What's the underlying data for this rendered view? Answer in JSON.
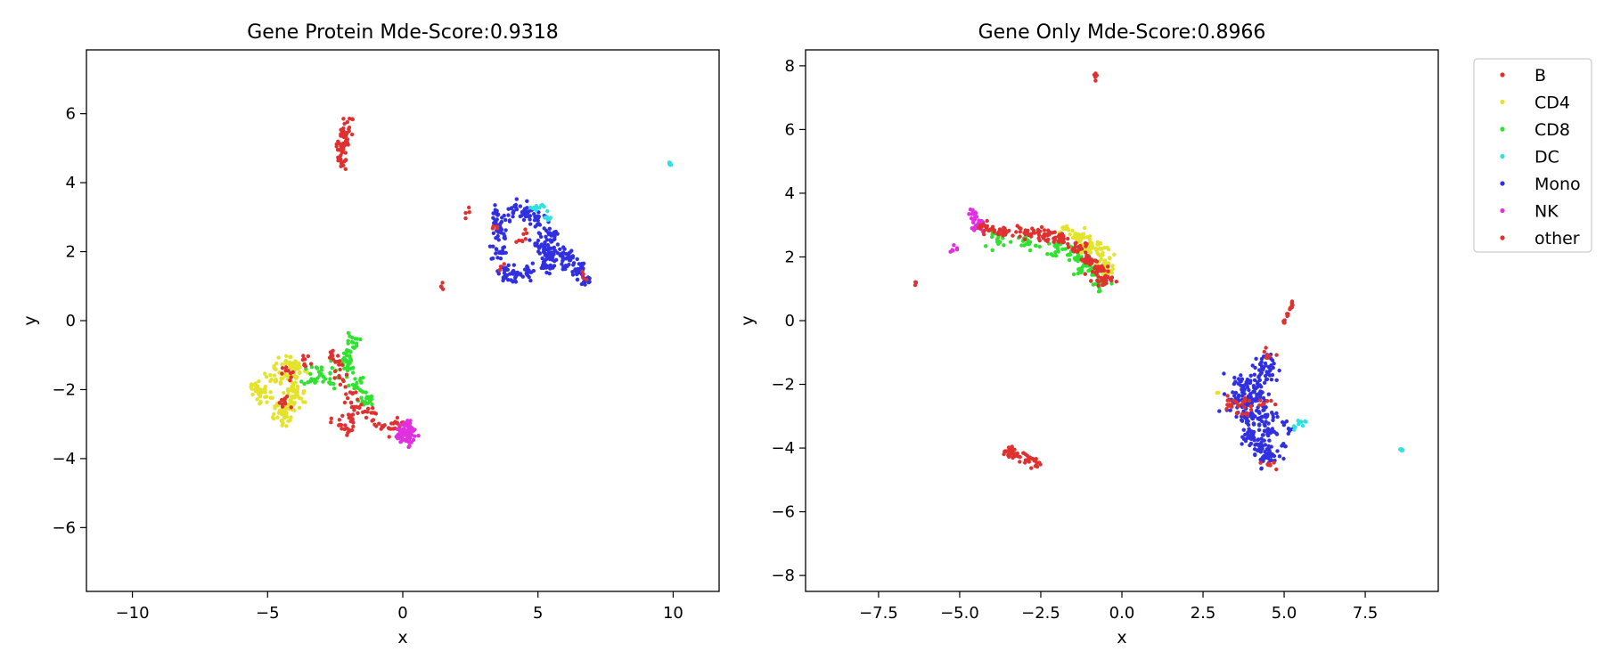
{
  "chart_data": [
    {
      "type": "scatter",
      "title": "Gene Protein Mde-Score:0.9318",
      "xlabel": "x",
      "ylabel": "y",
      "xlim": [
        -11.7,
        11.7
      ],
      "ylim": [
        -7.85,
        7.85
      ],
      "xticks": [
        -10,
        -5,
        0,
        5,
        10
      ],
      "xtick_labels": [
        "−10",
        "−5",
        "0",
        "5",
        "10"
      ],
      "yticks": [
        -6,
        -4,
        -2,
        0,
        2,
        4,
        6
      ],
      "ytick_labels": [
        "−6",
        "−4",
        "−2",
        "0",
        "2",
        "4",
        "6"
      ],
      "grid": false,
      "clusters": [
        {
          "series": "other",
          "points": [
            [
              -2.15,
              5.3
            ],
            [
              -2.25,
              5.0
            ],
            [
              -2.05,
              5.55
            ],
            [
              -2.2,
              4.8
            ]
          ],
          "spread": [
            0.12,
            0.2
          ],
          "n": 60
        },
        {
          "series": "DC",
          "points": [
            [
              9.85,
              4.52
            ]
          ],
          "spread": [
            0.05,
            0.04
          ],
          "n": 6
        },
        {
          "series": "Mono",
          "points": [
            [
              3.5,
              3.0
            ],
            [
              3.6,
              2.5
            ],
            [
              3.55,
              2.0
            ],
            [
              3.7,
              1.4
            ],
            [
              4.2,
              1.3
            ],
            [
              4.6,
              1.45
            ],
            [
              4.1,
              3.2
            ],
            [
              4.6,
              3.15
            ],
            [
              5.0,
              2.9
            ],
            [
              5.1,
              2.3
            ],
            [
              5.35,
              2.0
            ],
            [
              5.6,
              1.9
            ],
            [
              5.9,
              1.8
            ],
            [
              6.2,
              1.75
            ],
            [
              6.5,
              1.5
            ],
            [
              6.75,
              1.2
            ],
            [
              5.3,
              1.6
            ],
            [
              5.5,
              2.4
            ]
          ],
          "spread": [
            0.14,
            0.14
          ],
          "n": 340
        },
        {
          "series": "DC",
          "points": [
            [
              4.8,
              3.25
            ],
            [
              5.2,
              3.25
            ],
            [
              5.35,
              3.0
            ]
          ],
          "spread": [
            0.1,
            0.05
          ],
          "n": 18
        },
        {
          "series": "other",
          "points": [
            [
              3.6,
              1.5
            ],
            [
              3.4,
              2.6
            ],
            [
              4.5,
              2.4
            ],
            [
              6.7,
              1.3
            ],
            [
              2.55,
              3.22
            ],
            [
              1.45,
              0.97
            ],
            [
              4.3,
              2.3
            ]
          ],
          "spread": [
            0.1,
            0.1
          ],
          "n": 26
        },
        {
          "series": "CD4",
          "points": [
            [
              -5.1,
              -2.1
            ],
            [
              -4.7,
              -1.5
            ],
            [
              -4.2,
              -1.3
            ],
            [
              -4.1,
              -1.8
            ],
            [
              -4.25,
              -2.5
            ],
            [
              -4.6,
              -2.5
            ],
            [
              -4.4,
              -2.85
            ],
            [
              -3.95,
              -2.2
            ],
            [
              -5.4,
              -2.0
            ],
            [
              -3.9,
              -1.4
            ]
          ],
          "spread": [
            0.18,
            0.18
          ],
          "n": 200
        },
        {
          "series": "CD8",
          "points": [
            [
              -2.0,
              -0.9
            ],
            [
              -1.9,
              -1.4
            ],
            [
              -2.25,
              -1.2
            ],
            [
              -1.7,
              -1.8
            ],
            [
              -3.4,
              -1.6
            ],
            [
              -3.0,
              -1.5
            ],
            [
              -1.5,
              -2.2
            ],
            [
              -1.3,
              -2.35
            ],
            [
              -2.7,
              -1.7
            ],
            [
              -1.9,
              -0.6
            ]
          ],
          "spread": [
            0.14,
            0.14
          ],
          "n": 120
        },
        {
          "series": "other",
          "points": [
            [
              -2.45,
              -1.2
            ],
            [
              -2.3,
              -1.7
            ],
            [
              -2.0,
              -2.2
            ],
            [
              -1.65,
              -2.5
            ],
            [
              -1.2,
              -2.7
            ],
            [
              -0.9,
              -2.95
            ],
            [
              -0.45,
              -3.1
            ],
            [
              -2.4,
              -3.0
            ],
            [
              -1.9,
              -2.85
            ],
            [
              -2.0,
              -3.15
            ],
            [
              -4.2,
              -1.55
            ],
            [
              -3.6,
              -1.25
            ],
            [
              -4.4,
              -2.4
            ],
            [
              -0.1,
              -3.0
            ],
            [
              -2.6,
              -1.0
            ]
          ],
          "spread": [
            0.12,
            0.12
          ],
          "n": 130
        },
        {
          "series": "NK",
          "points": [
            [
              0.05,
              -3.25
            ],
            [
              0.3,
              -3.25
            ],
            [
              0.15,
              -3.05
            ],
            [
              -0.1,
              -3.35
            ],
            [
              0.2,
              -3.45
            ]
          ],
          "spread": [
            0.13,
            0.09
          ],
          "n": 90
        }
      ]
    },
    {
      "type": "scatter",
      "title": "Gene Only Mde-Score:0.8966",
      "xlabel": "x",
      "ylabel": "y",
      "xlim": [
        -9.75,
        9.75
      ],
      "ylim": [
        -8.5,
        8.5
      ],
      "xticks": [
        -7.5,
        -5.0,
        -2.5,
        0.0,
        2.5,
        5.0,
        7.5
      ],
      "xtick_labels": [
        "−7.5",
        "−5.0",
        "−2.5",
        "0.0",
        "2.5",
        "5.0",
        "7.5"
      ],
      "yticks": [
        -8,
        -6,
        -4,
        -2,
        0,
        2,
        4,
        6,
        8
      ],
      "ytick_labels": [
        "−8",
        "−6",
        "−4",
        "−2",
        "0",
        "2",
        "4",
        "6",
        "8"
      ],
      "grid": false,
      "clusters": [
        {
          "series": "other",
          "points": [
            [
              -0.8,
              7.72
            ]
          ],
          "spread": [
            0.03,
            0.06
          ],
          "n": 6
        },
        {
          "series": "other",
          "points": [
            [
              -6.35,
              1.12
            ]
          ],
          "spread": [
            0.02,
            0.05
          ],
          "n": 3
        },
        {
          "series": "NK",
          "points": [
            [
              -5.1,
              2.28
            ],
            [
              -5.25,
              2.18
            ]
          ],
          "spread": [
            0.05,
            0.04
          ],
          "n": 6
        },
        {
          "series": "NK",
          "points": [
            [
              -4.5,
              3.1
            ],
            [
              -4.4,
              2.95
            ],
            [
              -4.55,
              3.35
            ]
          ],
          "spread": [
            0.1,
            0.1
          ],
          "n": 40
        },
        {
          "series": "CD8",
          "points": [
            [
              -3.8,
              2.55
            ],
            [
              -2.9,
              2.45
            ],
            [
              -2.0,
              2.3
            ],
            [
              -1.5,
              2.1
            ],
            [
              -1.1,
              1.9
            ],
            [
              -0.8,
              1.5
            ],
            [
              -0.7,
              1.2
            ],
            [
              -1.2,
              1.6
            ]
          ],
          "spread": [
            0.14,
            0.12
          ],
          "n": 140
        },
        {
          "series": "CD4",
          "points": [
            [
              -1.7,
              2.8
            ],
            [
              -1.3,
              2.6
            ],
            [
              -0.9,
              2.35
            ],
            [
              -0.6,
              2.1
            ],
            [
              -0.45,
              1.8
            ],
            [
              -1.1,
              2.3
            ],
            [
              -0.5,
              1.5
            ]
          ],
          "spread": [
            0.13,
            0.12
          ],
          "n": 120
        },
        {
          "series": "other",
          "points": [
            [
              -4.2,
              2.9
            ],
            [
              -3.6,
              2.8
            ],
            [
              -3.0,
              2.75
            ],
            [
              -2.4,
              2.7
            ],
            [
              -1.9,
              2.6
            ],
            [
              -1.4,
              2.3
            ],
            [
              -1.0,
              1.9
            ],
            [
              -0.75,
              1.6
            ],
            [
              -0.6,
              1.25
            ]
          ],
          "spread": [
            0.15,
            0.09
          ],
          "n": 200
        },
        {
          "series": "Mono",
          "points": [
            [
              4.35,
              -1.4
            ],
            [
              4.3,
              -1.8
            ],
            [
              4.15,
              -2.3
            ],
            [
              3.85,
              -2.5
            ],
            [
              3.6,
              -2.6
            ],
            [
              4.3,
              -2.9
            ],
            [
              4.0,
              -3.1
            ],
            [
              3.9,
              -3.6
            ],
            [
              4.3,
              -4.0
            ],
            [
              4.6,
              -4.3
            ],
            [
              3.75,
              -2.0
            ],
            [
              4.5,
              -3.5
            ]
          ],
          "spread": [
            0.18,
            0.16
          ],
          "n": 320
        },
        {
          "series": "other",
          "points": [
            [
              3.5,
              -2.6
            ],
            [
              3.9,
              -2.5
            ],
            [
              4.4,
              -2.55
            ],
            [
              3.7,
              -2.9
            ],
            [
              4.5,
              -1.1
            ],
            [
              4.55,
              -4.5
            ],
            [
              3.3,
              -2.5
            ]
          ],
          "spread": [
            0.12,
            0.1
          ],
          "n": 50
        },
        {
          "series": "Mono",
          "points": [
            [
              4.7,
              -3.0
            ],
            [
              5.0,
              -3.2
            ],
            [
              5.2,
              -3.5
            ],
            [
              4.95,
              -3.9
            ]
          ],
          "spread": [
            0.06,
            0.06
          ],
          "n": 14
        },
        {
          "series": "DC",
          "points": [
            [
              5.3,
              -3.35
            ],
            [
              5.5,
              -3.25
            ],
            [
              5.6,
              -3.2
            ]
          ],
          "spread": [
            0.05,
            0.05
          ],
          "n": 12
        },
        {
          "series": "DC",
          "points": [
            [
              8.6,
              -4.05
            ]
          ],
          "spread": [
            0.04,
            0.02
          ],
          "n": 6
        },
        {
          "series": "other",
          "points": [
            [
              5.0,
              -0.05
            ],
            [
              5.1,
              0.2
            ],
            [
              5.2,
              0.4
            ],
            [
              5.25,
              0.55
            ]
          ],
          "spread": [
            0.03,
            0.04
          ],
          "n": 20
        },
        {
          "series": "other",
          "points": [
            [
              -3.5,
              -4.05
            ],
            [
              -3.2,
              -4.2
            ],
            [
              -2.9,
              -4.35
            ],
            [
              -2.7,
              -4.45
            ],
            [
              -3.4,
              -4.2
            ]
          ],
          "spread": [
            0.09,
            0.06
          ],
          "n": 60
        },
        {
          "series": "CD4",
          "points": [
            [
              2.95,
              -2.25
            ]
          ],
          "spread": [
            0.02,
            0.02
          ],
          "n": 2
        }
      ]
    }
  ],
  "legend": {
    "position": "outside-right",
    "entries": [
      {
        "label": "B",
        "color": "#e03131"
      },
      {
        "label": "CD4",
        "color": "#e3e32b"
      },
      {
        "label": "CD8",
        "color": "#2fe22f"
      },
      {
        "label": "DC",
        "color": "#2fe2e2"
      },
      {
        "label": "Mono",
        "color": "#3030e0"
      },
      {
        "label": "NK",
        "color": "#e030e0"
      },
      {
        "label": "other",
        "color": "#e03131"
      }
    ]
  }
}
